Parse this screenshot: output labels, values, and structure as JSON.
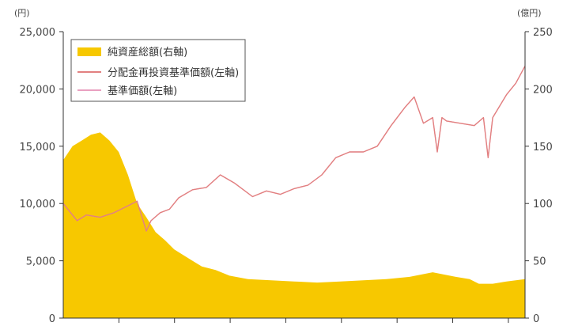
{
  "chart_data": {
    "type": "area+line",
    "title": "",
    "left_unit": "(円)",
    "right_unit": "(億円)",
    "left_axis": {
      "ylim": [
        0,
        25000
      ],
      "ticks": [
        "25,000",
        "20,000",
        "15,000",
        "10,000",
        "5,000",
        "0"
      ],
      "tick_values": [
        25000,
        20000,
        15000,
        10000,
        5000,
        0
      ]
    },
    "right_axis": {
      "ylim": [
        0,
        250
      ],
      "ticks": [
        "250",
        "200",
        "150",
        "100",
        "50",
        "0"
      ],
      "tick_values": [
        250,
        200,
        150,
        100,
        50,
        0
      ]
    },
    "legend_placement": "top-left",
    "colors": {
      "net_assets": "#f7c800",
      "reinvested_nav": "#e28080",
      "nav": "#e9a0c0"
    },
    "series": [
      {
        "name": "純資産総額(右軸)",
        "type": "area",
        "axis": "right",
        "t": [
          0,
          0.02,
          0.04,
          0.06,
          0.08,
          0.1,
          0.12,
          0.14,
          0.16,
          0.18,
          0.2,
          0.22,
          0.24,
          0.26,
          0.28,
          0.3,
          0.33,
          0.36,
          0.4,
          0.45,
          0.5,
          0.55,
          0.6,
          0.65,
          0.7,
          0.75,
          0.8,
          0.85,
          0.88,
          0.9,
          0.93,
          0.96,
          1.0
        ],
        "values": [
          138,
          150,
          155,
          160,
          162,
          155,
          145,
          125,
          100,
          88,
          75,
          68,
          60,
          55,
          50,
          45,
          42,
          37,
          34,
          33,
          32,
          31,
          32,
          33,
          34,
          36,
          40,
          36,
          34,
          30,
          30,
          32,
          34
        ]
      },
      {
        "name": "分配金再投資基準価額(左軸)",
        "type": "line",
        "axis": "left",
        "t": [
          0,
          0.03,
          0.05,
          0.08,
          0.11,
          0.13,
          0.16,
          0.18,
          0.19,
          0.21,
          0.23,
          0.25,
          0.28,
          0.31,
          0.34,
          0.37,
          0.39,
          0.41,
          0.44,
          0.47,
          0.5,
          0.53,
          0.56,
          0.59,
          0.62,
          0.65,
          0.68,
          0.71,
          0.74,
          0.76,
          0.78,
          0.8,
          0.81,
          0.82,
          0.83,
          0.86,
          0.89,
          0.91,
          0.92,
          0.93,
          0.96,
          0.98,
          1.0
        ],
        "values": [
          10000,
          8500,
          9000,
          8800,
          9200,
          9600,
          10200,
          7600,
          8500,
          9200,
          9500,
          10500,
          11200,
          11400,
          12500,
          11800,
          11200,
          10600,
          11100,
          10800,
          11300,
          11600,
          12500,
          14000,
          14500,
          14500,
          15000,
          16800,
          18400,
          19300,
          17000,
          17500,
          14500,
          17500,
          17200,
          17000,
          16800,
          17500,
          14000,
          17500,
          19500,
          20500,
          22000
        ]
      },
      {
        "name": "基準価額(左軸)",
        "type": "line",
        "axis": "left",
        "t": [
          0,
          0.03,
          0.05,
          0.08,
          0.11,
          0.13,
          0.16,
          0.18,
          0.19,
          0.21,
          0.23,
          0.25,
          0.28,
          0.31,
          0.34,
          0.37,
          0.39,
          0.41,
          0.44,
          0.47,
          0.5,
          0.53,
          0.56,
          0.59,
          0.62,
          0.65,
          0.68,
          0.71,
          0.74,
          0.76,
          0.78,
          0.8,
          0.81,
          0.82,
          0.83,
          0.86,
          0.89,
          0.91,
          0.92,
          0.93,
          0.96,
          0.98,
          1.0
        ],
        "values": [
          10000,
          8500,
          9000,
          8800,
          9200,
          9600,
          10200,
          7600,
          8500,
          9200,
          9500,
          10500,
          11200,
          11400,
          12500,
          11800,
          11200,
          10600,
          11100,
          10800,
          11300,
          11600,
          12500,
          14000,
          14500,
          14500,
          15000,
          16800,
          18400,
          19300,
          17000,
          17500,
          14500,
          17500,
          17200,
          17000,
          16800,
          17500,
          14000,
          17500,
          19500,
          20500,
          22000
        ]
      }
    ],
    "x_ticks_count": 8
  }
}
